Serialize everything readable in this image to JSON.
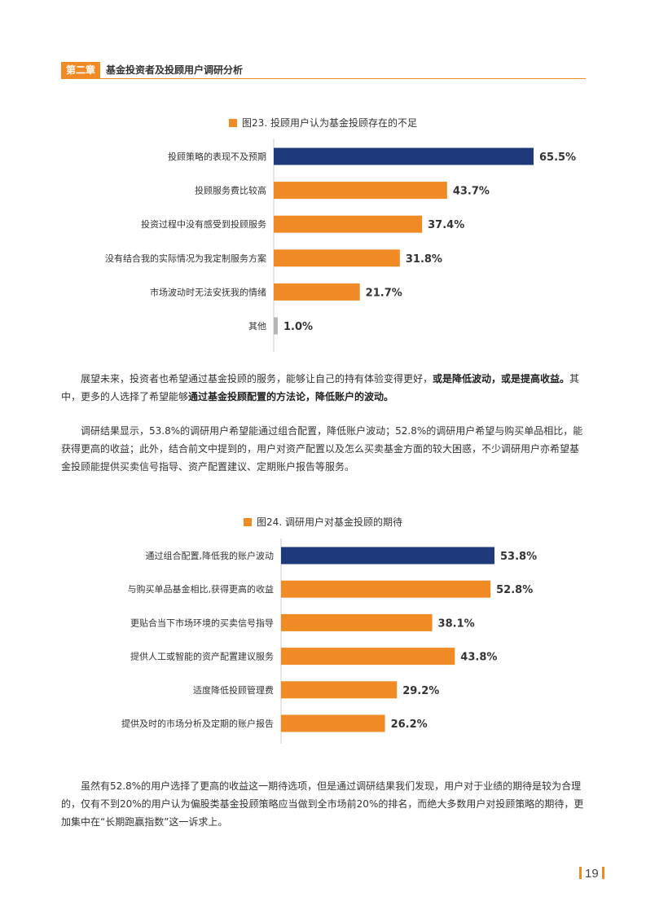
{
  "header": {
    "chapter": "第二章",
    "title": "基金投资者及投顾用户调研分析"
  },
  "colors": {
    "accent": "#f08a24",
    "highlight": "#1f3a7a",
    "other": "#b5b5b5",
    "axis": "#cccccc"
  },
  "chart1": {
    "title": "图23. 投顾用户认为基金投顾存在的不足"
  },
  "chart2": {
    "title": "图24. 调研用户对基金投顾的期待"
  },
  "chart_data": [
    {
      "type": "bar",
      "orientation": "horizontal",
      "title": "图23. 投顾用户认为基金投顾存在的不足",
      "categories": [
        "投顾策略的表现不及预期",
        "投顾服务费比较高",
        "投资过程中没有感受到投顾服务",
        "没有结合我的实际情况为我定制服务方案",
        "市场波动时无法安抚我的情绪",
        "其他"
      ],
      "values": [
        65.5,
        43.7,
        37.4,
        31.8,
        21.7,
        1.0
      ],
      "labels": [
        "65.5%",
        "43.7%",
        "37.4%",
        "31.8%",
        "21.7%",
        "1.0%"
      ],
      "unit": "%",
      "xlim": [
        0,
        100
      ]
    },
    {
      "type": "bar",
      "orientation": "horizontal",
      "title": "图24. 调研用户对基金投顾的期待",
      "categories": [
        "通过组合配置,降低我的账户波动",
        "与购买单品基金相比,获得更高的收益",
        "更贴合当下市场环境的买卖信号指导",
        "提供人工或智能的资产配置建议服务",
        "适度降低投顾管理费",
        "提供及时的市场分析及定期的账户报告"
      ],
      "values": [
        53.8,
        52.8,
        38.1,
        43.8,
        29.2,
        26.2
      ],
      "labels": [
        "53.8%",
        "52.8%",
        "38.1%",
        "43.8%",
        "29.2%",
        "26.2%"
      ],
      "unit": "%",
      "xlim": [
        0,
        100
      ]
    }
  ],
  "paragraphs": {
    "p1_a": "展望未来，投资者也希望通过基金投顾的服务，能够让自己的持有体验变得更好，",
    "p1_b": "或是降低波动，或是提高收益。",
    "p1_c": "其中，更多的人选择了希望能够",
    "p1_d": "通过基金投顾配置的方法论，降低账户的波动。",
    "p2": "调研结果显示，53.8%的调研用户希望能通过组合配置，降低账户波动；52.8%的调研用户希望与购买单品相比，能获得更高的收益；此外，结合前文中提到的，用户对资产配置以及怎么买卖基金方面的较大困惑，不少调研用户亦希望基金投顾能提供买卖信号指导、资产配置建议、定期账户报告等服务。",
    "p3": "虽然有52.8%的用户选择了更高的收益这一期待选项，但是通过调研结果我们发现，用户对于业绩的期待是较为合理的，仅有不到20%的用户认为偏股类基金投顾策略应当做到全市场前20%的排名，而绝大多数用户对投顾策略的期待，更加集中在“长期跑赢指数”这一诉求上。"
  },
  "footer": {
    "page": "19"
  }
}
